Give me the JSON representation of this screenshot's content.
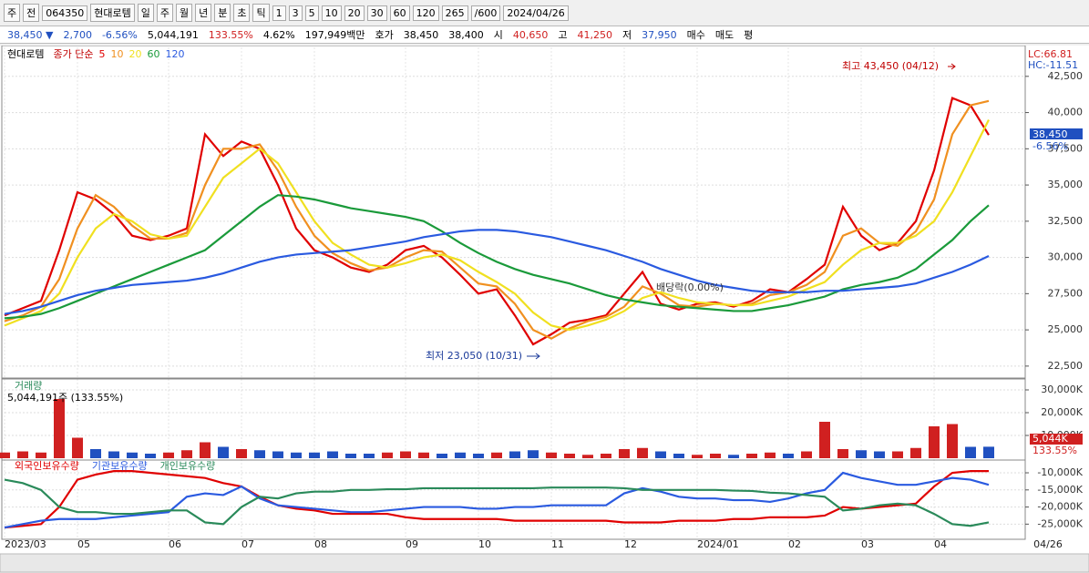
{
  "toolbar": [
    "주",
    "전",
    "064350",
    "현대로템",
    "일",
    "주",
    "월",
    "년",
    "분",
    "초",
    "틱",
    "1",
    "3",
    "5",
    "10",
    "20",
    "30",
    "60",
    "120",
    "265",
    "/600",
    "2024/04/26"
  ],
  "infobar": [
    "38,450 ▼",
    "2,700",
    "-6.56%",
    "5,044,191",
    "133.55%",
    "4.62%",
    "197,949백만",
    "호가",
    "38,450",
    "38,400",
    "시",
    "40,650",
    "고",
    "41,250",
    "저",
    "37,950",
    "매수",
    "매도",
    "평"
  ],
  "chart_data": [
    {
      "type": "line",
      "title": "현대로템",
      "subtitle": "종가 단순",
      "categories": [
        "2023/03",
        null,
        null,
        null,
        "05",
        null,
        null,
        null,
        null,
        "06",
        null,
        null,
        null,
        "07",
        null,
        null,
        null,
        "08",
        null,
        null,
        null,
        null,
        "09",
        null,
        null,
        null,
        "10",
        null,
        null,
        null,
        "11",
        null,
        null,
        null,
        "12",
        null,
        null,
        null,
        "2024/01",
        null,
        null,
        null,
        null,
        "02",
        null,
        null,
        null,
        "03",
        null,
        null,
        null,
        "04",
        null,
        null,
        null
      ],
      "x_end_label": "04/26",
      "series": [
        {
          "name": "5",
          "color": "#e00000",
          "values": [
            26000,
            26500,
            27000,
            30500,
            34500,
            34000,
            33000,
            31500,
            31200,
            31500,
            32000,
            38500,
            37000,
            38000,
            37500,
            35000,
            32000,
            30500,
            30000,
            29300,
            29000,
            29500,
            30500,
            30800,
            30000,
            28800,
            27500,
            27800,
            26000,
            24000,
            24700,
            25500,
            25700,
            26000,
            27500,
            29000,
            26800,
            26400,
            26800,
            26900,
            26600,
            27000,
            27800,
            27600,
            28500,
            29500,
            33500,
            31500,
            30500,
            31000,
            32500,
            36000,
            41000,
            40500,
            38450
          ]
        },
        {
          "name": "10",
          "color": "#f09020",
          "values": [
            25600,
            26000,
            26600,
            28500,
            32000,
            34300,
            33500,
            32200,
            31300,
            31300,
            31700,
            35000,
            37500,
            37500,
            37800,
            36000,
            33500,
            31500,
            30300,
            29600,
            29100,
            29300,
            30000,
            30500,
            30400,
            29300,
            28200,
            28000,
            26800,
            25000,
            24400,
            25100,
            25600,
            25900,
            26600,
            28000,
            27500,
            26700,
            26600,
            26800,
            26700,
            26800,
            27400,
            27600,
            28100,
            29000,
            31500,
            32000,
            31000,
            30800,
            31800,
            34000,
            38500,
            40500,
            40800
          ]
        },
        {
          "name": "20",
          "color": "#f0e020",
          "values": [
            25300,
            25800,
            26300,
            27500,
            30000,
            32000,
            33000,
            32500,
            31600,
            31300,
            31500,
            33500,
            35500,
            36500,
            37500,
            36500,
            34500,
            32500,
            31000,
            30200,
            29500,
            29300,
            29600,
            30000,
            30200,
            29800,
            29000,
            28300,
            27500,
            26200,
            25300,
            25000,
            25300,
            25700,
            26300,
            27200,
            27600,
            27200,
            26900,
            26800,
            26700,
            26700,
            27000,
            27300,
            27800,
            28300,
            29500,
            30500,
            31000,
            31000,
            31500,
            32500,
            34500,
            37000,
            39500
          ]
        },
        {
          "name": "60",
          "color": "#1a9a3a",
          "values": [
            25800,
            25900,
            26100,
            26500,
            27000,
            27500,
            28000,
            28500,
            29000,
            29500,
            30000,
            30500,
            31500,
            32500,
            33500,
            34300,
            34200,
            34000,
            33700,
            33400,
            33200,
            33000,
            32800,
            32500,
            31800,
            31000,
            30300,
            29700,
            29200,
            28800,
            28500,
            28200,
            27800,
            27400,
            27100,
            26900,
            26700,
            26600,
            26500,
            26400,
            26300,
            26300,
            26500,
            26700,
            27000,
            27300,
            27800,
            28100,
            28300,
            28600,
            29200,
            30200,
            31200,
            32500,
            33600
          ]
        },
        {
          "name": "120",
          "color": "#2a5ae0",
          "values": [
            26100,
            26300,
            26600,
            27000,
            27400,
            27700,
            27900,
            28100,
            28200,
            28300,
            28400,
            28600,
            28900,
            29300,
            29700,
            30000,
            30200,
            30300,
            30400,
            30500,
            30700,
            30900,
            31100,
            31400,
            31600,
            31800,
            31900,
            31900,
            31800,
            31600,
            31400,
            31100,
            30800,
            30500,
            30100,
            29700,
            29200,
            28800,
            28400,
            28100,
            27900,
            27700,
            27600,
            27600,
            27600,
            27700,
            27700,
            27800,
            27900,
            28000,
            28200,
            28600,
            29000,
            29500,
            30100
          ]
        }
      ],
      "ylim": [
        21800,
        44500
      ],
      "yticks": [
        {
          "value": 22500,
          "label": "22,500"
        },
        {
          "value": 25000,
          "label": "25,000"
        },
        {
          "value": 27500,
          "label": "27,500"
        },
        {
          "value": 30000,
          "label": "30,000"
        },
        {
          "value": 32500,
          "label": "32,500"
        },
        {
          "value": 35000,
          "label": "35,000"
        },
        {
          "value": 37500,
          "label": "37,500"
        },
        {
          "value": 40000,
          "label": "40,000"
        },
        {
          "value": 42500,
          "label": "42,500"
        }
      ],
      "annotations": [
        "최고 43,450 (04/12)",
        "최저 23,050 (10/31)",
        "배당락(0.00%)",
        "LC:66.81",
        "HC:-11.51",
        "38,450",
        "-6.56%"
      ],
      "grid": true
    },
    {
      "type": "bar",
      "title": "거래량",
      "subtitle": "5,044,191주 (133.55%)",
      "up_color": "#d02020",
      "down_color": "#2050c0",
      "values": [
        2500,
        3000,
        2500,
        26000,
        9000,
        4000,
        3000,
        2500,
        2000,
        2500,
        3500,
        7000,
        5000,
        4000,
        3500,
        3000,
        2500,
        2500,
        3000,
        2000,
        2000,
        2500,
        3000,
        2500,
        2000,
        2500,
        2000,
        2500,
        3000,
        3500,
        2500,
        2000,
        1500,
        2000,
        4000,
        4500,
        3000,
        2000,
        1500,
        2000,
        1500,
        2000,
        2500,
        2000,
        3000,
        16000,
        4000,
        3500,
        3000,
        3000,
        4500,
        14000,
        15000,
        5000,
        5044
      ],
      "ylim": [
        0,
        34000
      ],
      "yticks": [
        {
          "value": 10000,
          "label": "10,000K"
        },
        {
          "value": 20000,
          "label": "20,000K"
        },
        {
          "value": 30000,
          "label": "30,000K"
        }
      ],
      "annotations": [
        "5,044K",
        "133.55%"
      ],
      "grid": true
    },
    {
      "type": "line",
      "series": [
        {
          "name": "외국인보유수량",
          "color": "#e00000",
          "values": [
            -26000,
            -25500,
            -25000,
            -20000,
            -12000,
            -10500,
            -9500,
            -9500,
            -10000,
            -10500,
            -11000,
            -11500,
            -13000,
            -14000,
            -17000,
            -19500,
            -20500,
            -21000,
            -22000,
            -22000,
            -22000,
            -22000,
            -23000,
            -23500,
            -23500,
            -23500,
            -23500,
            -23500,
            -24000,
            -24000,
            -24000,
            -24000,
            -24000,
            -24000,
            -24500,
            -24500,
            -24500,
            -24000,
            -24000,
            -24000,
            -23500,
            -23500,
            -23000,
            -23000,
            -23000,
            -22500,
            -20000,
            -20500,
            -20000,
            -19500,
            -19000,
            -14000,
            -10000,
            -9500,
            -9500
          ]
        },
        {
          "name": "기관보유수량",
          "color": "#2a5ae0",
          "values": [
            -26000,
            -25000,
            -24000,
            -23500,
            -23500,
            -23500,
            -23000,
            -22500,
            -22000,
            -21500,
            -17000,
            -16000,
            -16500,
            -14000,
            -17500,
            -19500,
            -20000,
            -20500,
            -21000,
            -21500,
            -21500,
            -21000,
            -20500,
            -20000,
            -20000,
            -20000,
            -20500,
            -20500,
            -20000,
            -20000,
            -19500,
            -19500,
            -19500,
            -19500,
            -16000,
            -14500,
            -15500,
            -17000,
            -17500,
            -17500,
            -18000,
            -18000,
            -18500,
            -17500,
            -16000,
            -15000,
            -10000,
            -11500,
            -12500,
            -13500,
            -13500,
            -12500,
            -11500,
            -12000,
            -13500
          ]
        },
        {
          "name": "개인보유수량",
          "color": "#2a8a5a",
          "values": [
            -12000,
            -13000,
            -15000,
            -20000,
            -21500,
            -21500,
            -22000,
            -22000,
            -21500,
            -21000,
            -21000,
            -24500,
            -25000,
            -20000,
            -17000,
            -17500,
            -16000,
            -15500,
            -15500,
            -15000,
            -15000,
            -14800,
            -14800,
            -14500,
            -14500,
            -14500,
            -14500,
            -14500,
            -14500,
            -14500,
            -14300,
            -14300,
            -14300,
            -14300,
            -14500,
            -15000,
            -15000,
            -15000,
            -15000,
            -15000,
            -15200,
            -15300,
            -15800,
            -16000,
            -16500,
            -17000,
            -21000,
            -20500,
            -19500,
            -19000,
            -19500,
            -22000,
            -25000,
            -25500,
            -24500
          ]
        }
      ],
      "ylim": [
        -28900,
        -6800
      ],
      "yticks": [
        {
          "value": -25000,
          "label": "-25,000K"
        },
        {
          "value": -20000,
          "label": "-20,000K"
        },
        {
          "value": -15000,
          "label": "-15,000K"
        },
        {
          "value": -10000,
          "label": "-10,000K"
        }
      ],
      "grid": true
    }
  ]
}
